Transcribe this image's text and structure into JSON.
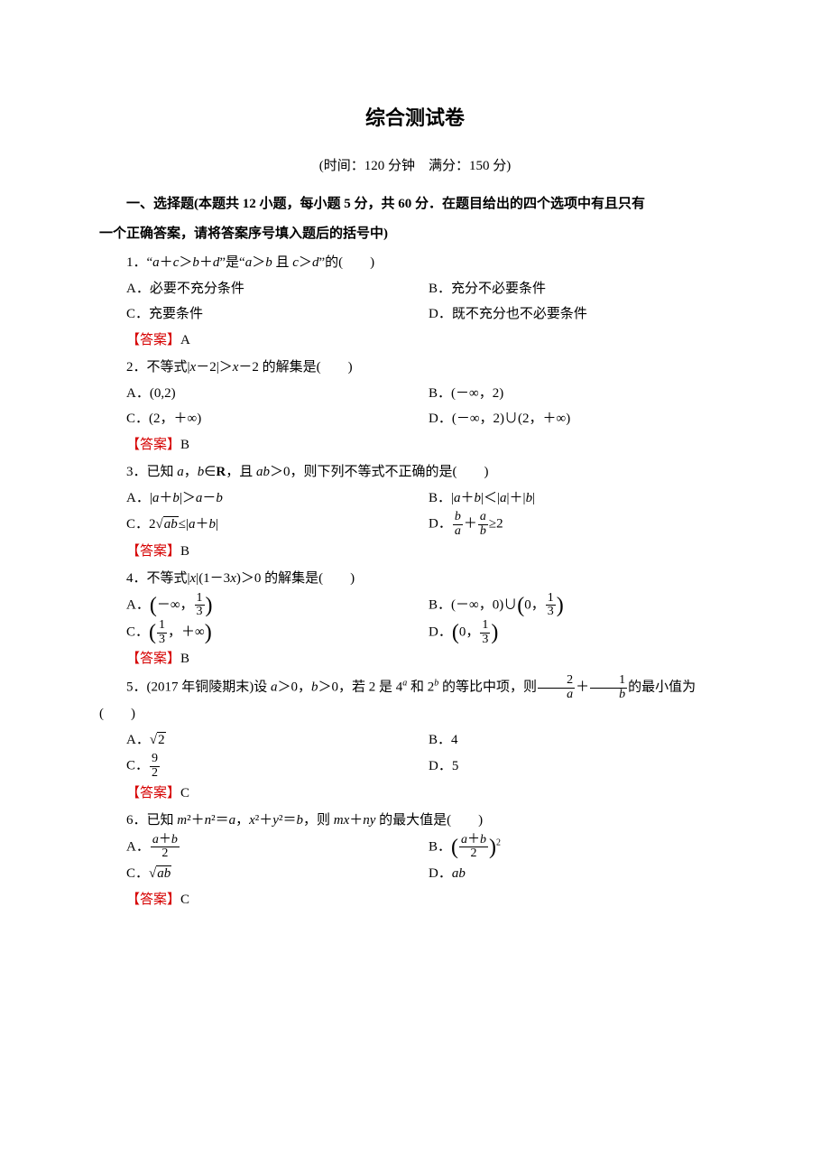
{
  "title": "综合测试卷",
  "meta": "(时间：120 分钟　满分：150 分)",
  "section1_a": "一、选择题(本题共 12 小题，每小题 5 分，共 60 分．在题目给出的四个选项中有且只有",
  "section1_b": "一个正确答案，请将答案序号填入题后的括号中)",
  "q1": {
    "stem_pre": "1．“",
    "stem_expr_a": "a＋c＞b＋d",
    "stem_mid": "”是“",
    "stem_expr_b": "a＞b 且 c＞d",
    "stem_post": "”的(　　)",
    "optA": "A．必要不充分条件",
    "optB": "B．充分不必要条件",
    "optC": "C．充要条件",
    "optD": "D．既不充分也不必要条件",
    "ans": "A"
  },
  "q2": {
    "stem": "2．不等式|x－2|＞x－2 的解集是(　　)",
    "optA": "A．(0,2)",
    "optB": "B．(－∞，2)",
    "optC": "C．(2，＋∞)",
    "optD": "D．(－∞，2)∪(2，＋∞)",
    "ans": "B"
  },
  "q3": {
    "stem": "3．已知 a，b∈R，且 ab＞0，则下列不等式不正确的是(　　)",
    "optA": "A．|a＋b|＞a－b",
    "optB": "B．|a＋b|＜|a|＋|b|",
    "optC": "C．2√(ab)≤|a＋b|",
    "optD": "D．b/a＋a/b≥2",
    "ans": "B"
  },
  "q4": {
    "stem": "4．不等式|x|(1－3x)＞0 的解集是(　　)",
    "optA_lp": "A．",
    "optB_pre": "B．(－∞，0)∪",
    "optC_lp": "C．",
    "optD_lp": "D．",
    "ans": "B"
  },
  "q5": {
    "stem_pre": "5．(2017 年铜陵期末)设 a＞0，b＞0，若 2 是 4",
    "stem_mid": " 和 2",
    "stem_post1": " 的等比中项，则",
    "stem_post2": "的最小值为(　　)",
    "optA": "A．√2",
    "optB": "B．4",
    "optC": "C．9/2",
    "optD": "D．5",
    "ans": "C"
  },
  "q6": {
    "stem": "6．已知 m²＋n²＝a，x²＋y²＝b，则 mx＋ny 的最大值是(　　)",
    "optA": "A．(a＋b)/2",
    "optB_pre": "B．",
    "optB_post": "²",
    "optC": "C．√(ab)",
    "optD": "D．ab",
    "ans": "C"
  },
  "answer_label": "【答案】",
  "colors": {
    "answer": "#d60000",
    "text": "#000000",
    "bg": "#ffffff"
  }
}
